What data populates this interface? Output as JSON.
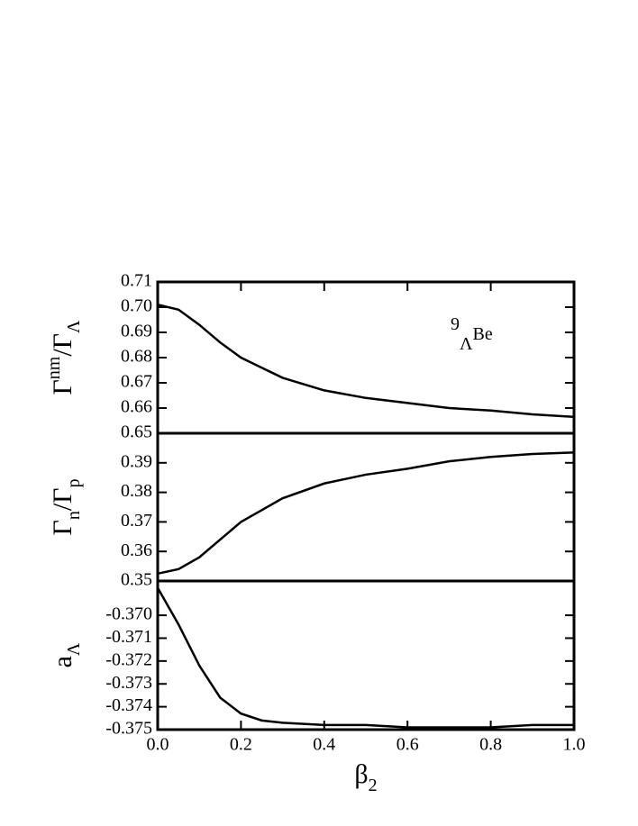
{
  "chart_data": [
    {
      "type": "line",
      "ylabel": [
        {
          "text": "Γ"
        },
        {
          "text": "nm",
          "shift": "super"
        },
        {
          "text": "/Γ"
        },
        {
          "text": "Λ",
          "shift": "sub"
        }
      ],
      "annotation": [
        {
          "text": "9",
          "shift": "super"
        },
        {
          "text": "Λ",
          "shift": "sub"
        },
        {
          "text": "Be"
        }
      ],
      "x": [
        0,
        0.05,
        0.1,
        0.15,
        0.2,
        0.25,
        0.3,
        0.4,
        0.5,
        0.6,
        0.7,
        0.8,
        0.9,
        1.0
      ],
      "series": [
        {
          "color": "#000000",
          "values": [
            0.701,
            0.699,
            0.693,
            0.686,
            0.68,
            0.676,
            0.672,
            0.667,
            0.664,
            0.662,
            0.66,
            0.659,
            0.6575,
            0.6565
          ]
        }
      ],
      "xlim": [
        0,
        1
      ],
      "ylim": [
        0.65,
        0.71
      ],
      "yticks": [
        {
          "value": 0.65,
          "label": "0.65"
        },
        0.66,
        0.67,
        0.68,
        0.69,
        {
          "value": 0.7,
          "label": "0.70"
        },
        0.71
      ]
    },
    {
      "type": "line",
      "ylabel": [
        {
          "text": "Γ"
        },
        {
          "text": "n",
          "shift": "sub"
        },
        {
          "text": "/Γ"
        },
        {
          "text": "p",
          "shift": "sub"
        }
      ],
      "x": [
        0,
        0.05,
        0.1,
        0.15,
        0.2,
        0.25,
        0.3,
        0.4,
        0.5,
        0.6,
        0.7,
        0.8,
        0.9,
        1.0
      ],
      "series": [
        {
          "color": "#000000",
          "values": [
            0.3525,
            0.354,
            0.358,
            0.364,
            0.37,
            0.374,
            0.378,
            0.383,
            0.386,
            0.388,
            0.3905,
            0.392,
            0.393,
            0.3935
          ]
        }
      ],
      "xlim": [
        0,
        1
      ],
      "ylim": [
        0.35,
        0.4
      ],
      "yticks": [
        0.35,
        0.36,
        0.37,
        0.38,
        0.39
      ]
    },
    {
      "type": "line",
      "ylabel": [
        {
          "text": "a"
        },
        {
          "text": "Λ",
          "shift": "sub"
        }
      ],
      "xlabel": [
        {
          "text": "β"
        },
        {
          "text": "2",
          "shift": "sub"
        }
      ],
      "x": [
        0,
        0.05,
        0.1,
        0.15,
        0.2,
        0.25,
        0.3,
        0.4,
        0.5,
        0.6,
        0.7,
        0.8,
        0.9,
        1.0
      ],
      "series": [
        {
          "color": "#000000",
          "values": [
            -0.3688,
            -0.3704,
            -0.3722,
            -0.3736,
            -0.3743,
            -0.3746,
            -0.3747,
            -0.3748,
            -0.3748,
            -0.3749,
            -0.3749,
            -0.3749,
            -0.3748,
            -0.3748
          ]
        }
      ],
      "xlim": [
        0,
        1
      ],
      "ylim": [
        -0.375,
        -0.3685
      ],
      "xticks": [
        {
          "value": 0,
          "label": "0.0"
        },
        {
          "value": 0.2,
          "label": "0.2"
        },
        {
          "value": 0.4,
          "label": "0.4"
        },
        {
          "value": 0.6,
          "label": "0.6"
        },
        {
          "value": 0.8,
          "label": "0.8"
        },
        {
          "value": 1,
          "label": "1.0"
        }
      ],
      "yticks": [
        -0.375,
        -0.374,
        -0.373,
        -0.372,
        -0.371,
        {
          "value": -0.37,
          "label": "-0.370"
        }
      ]
    }
  ]
}
